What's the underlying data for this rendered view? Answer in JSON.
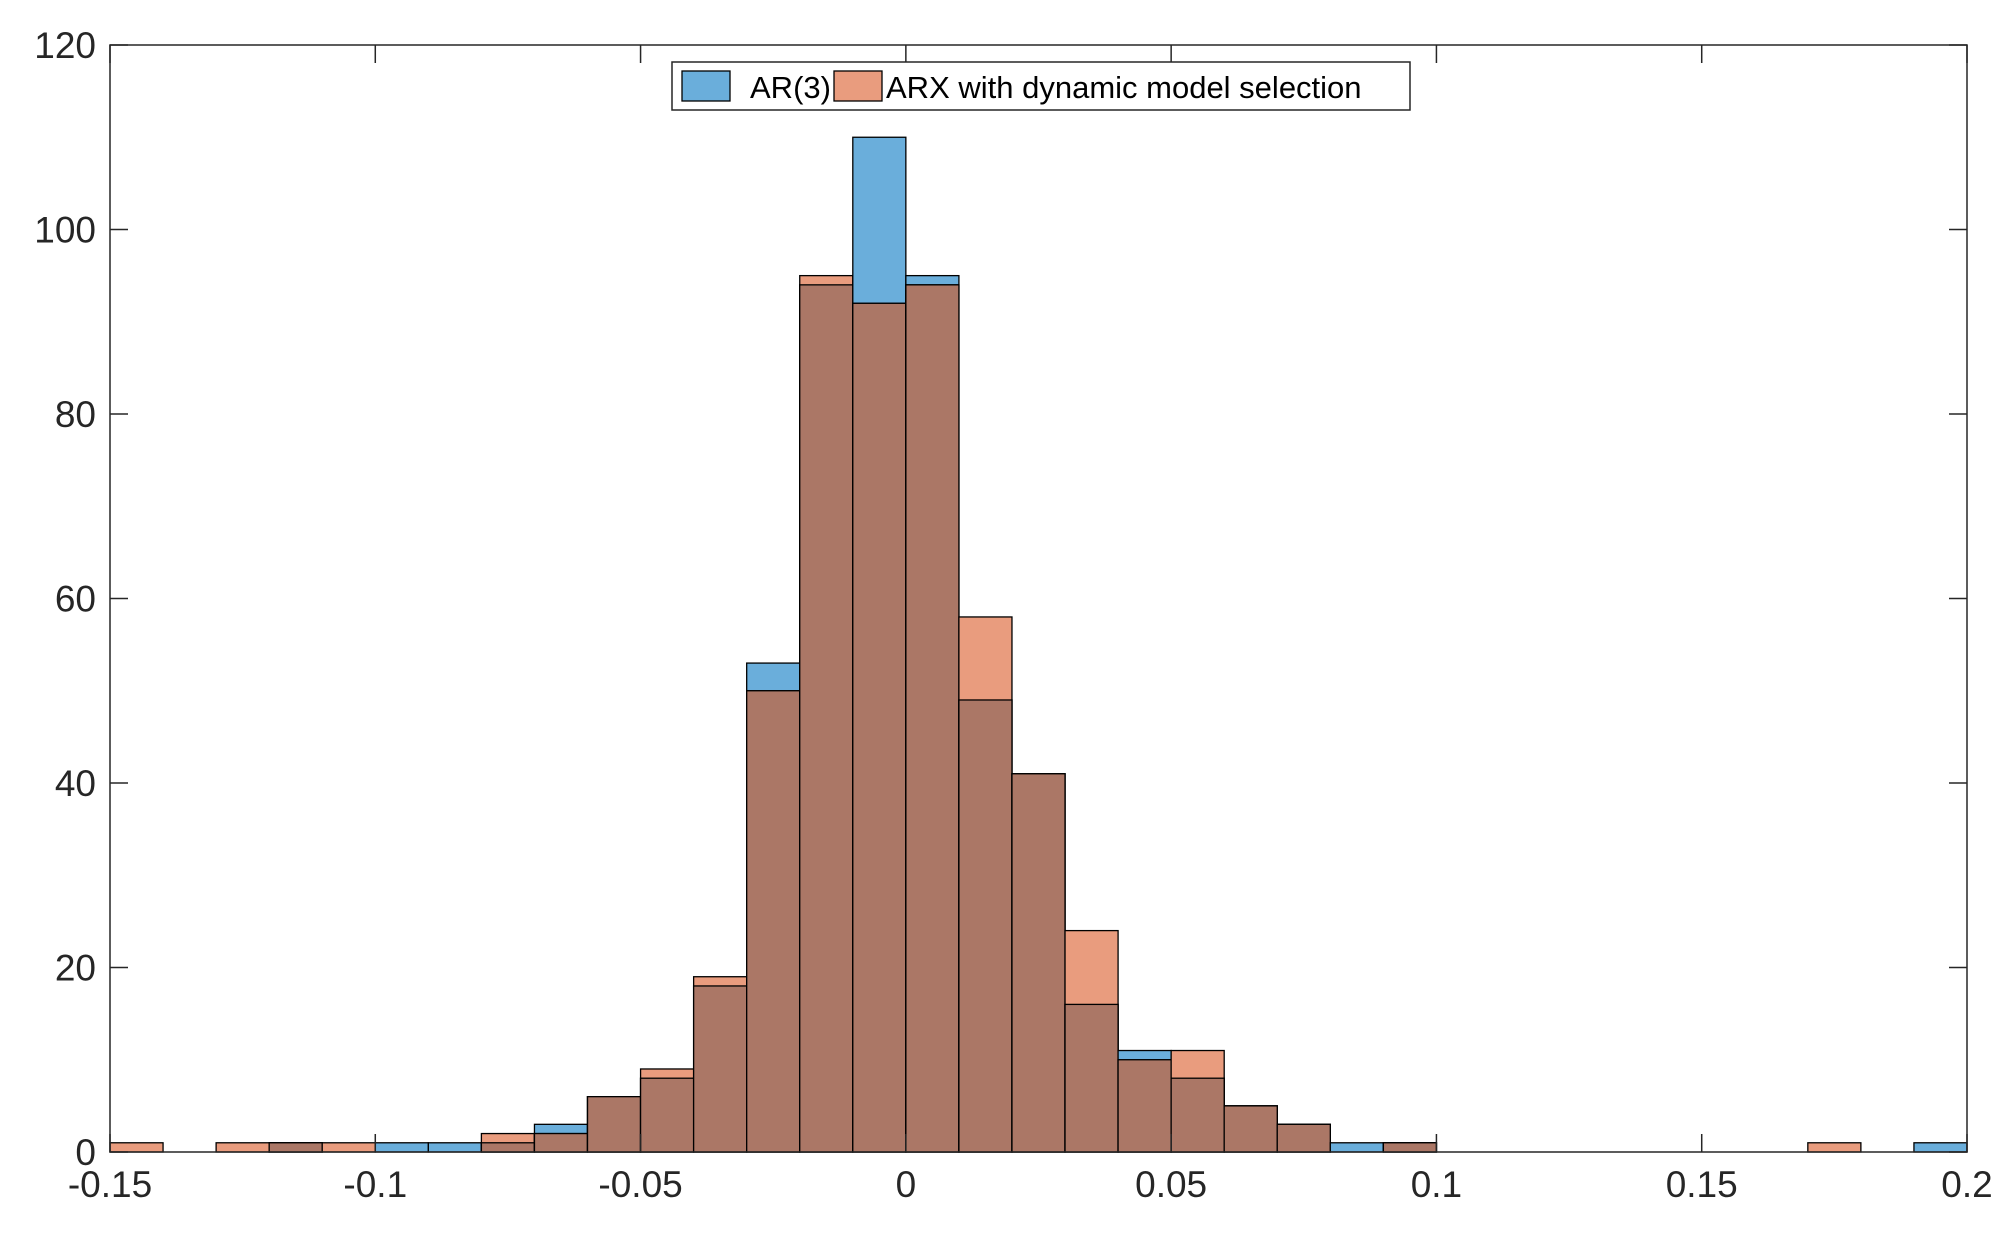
{
  "chart_data": {
    "type": "bar",
    "subtype": "overlaid-histogram",
    "title": "",
    "xlabel": "",
    "ylabel": "",
    "xlim": [
      -0.15,
      0.2
    ],
    "ylim": [
      0,
      120
    ],
    "bin_width": 0.01,
    "bin_edges_start": -0.15,
    "xticks": [
      -0.15,
      -0.1,
      -0.05,
      0,
      0.05,
      0.1,
      0.15,
      0.2
    ],
    "xtick_labels": [
      "-0.15",
      "-0.1",
      "-0.05",
      "0",
      "0.05",
      "0.1",
      "0.15",
      "0.2"
    ],
    "yticks": [
      0,
      20,
      40,
      60,
      80,
      100,
      120
    ],
    "ytick_labels": [
      "0",
      "20",
      "40",
      "60",
      "80",
      "100",
      "120"
    ],
    "grid": false,
    "box": true,
    "legend": {
      "position": "top-center",
      "orientation": "horizontal"
    },
    "bin_centers": [
      -0.145,
      -0.135,
      -0.125,
      -0.115,
      -0.105,
      -0.095,
      -0.085,
      -0.075,
      -0.065,
      -0.055,
      -0.045,
      -0.035,
      -0.025,
      -0.015,
      -0.005,
      0.005,
      0.015,
      0.025,
      0.035,
      0.045,
      0.055,
      0.065,
      0.075,
      0.085,
      0.095,
      0.105,
      0.115,
      0.125,
      0.135,
      0.145,
      0.155,
      0.165,
      0.175,
      0.185,
      0.195
    ],
    "series": [
      {
        "name": "AR(3)",
        "color": "#0072BD",
        "fill": "#6AAEDB",
        "values": [
          0,
          0,
          0,
          1,
          0,
          1,
          1,
          1,
          3,
          6,
          8,
          18,
          53,
          94,
          110,
          95,
          49,
          41,
          16,
          11,
          8,
          5,
          3,
          1,
          1,
          0,
          0,
          0,
          0,
          0,
          0,
          0,
          0,
          0,
          1
        ]
      },
      {
        "name": "ARX with dynamic model selection",
        "color": "#D95319",
        "fill": "#E99C7E",
        "values": [
          1,
          0,
          1,
          1,
          1,
          0,
          0,
          2,
          2,
          6,
          9,
          19,
          50,
          95,
          92,
          94,
          58,
          41,
          24,
          10,
          11,
          5,
          3,
          0,
          1,
          0,
          0,
          0,
          0,
          0,
          0,
          0,
          1,
          0,
          0
        ]
      }
    ],
    "overlap_color": "#AB7766"
  }
}
